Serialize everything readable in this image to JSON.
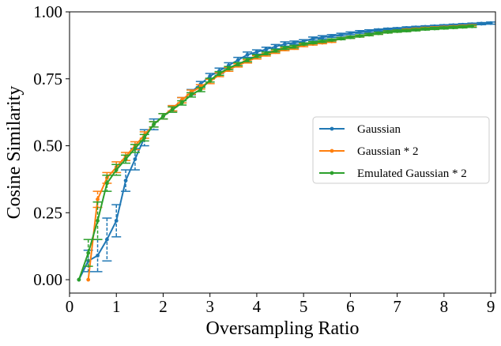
{
  "chart_data": {
    "type": "line",
    "title": "",
    "xlabel": "Oversampling Ratio",
    "ylabel": "Cosine Similarity",
    "xlim": [
      0,
      9.1
    ],
    "ylim": [
      -0.05,
      1.0
    ],
    "xticks": [
      0,
      1,
      2,
      3,
      4,
      5,
      6,
      7,
      8,
      9
    ],
    "yticks": [
      0.0,
      0.25,
      0.5,
      0.75,
      1.0
    ],
    "ytick_labels": [
      "0.00",
      "0.25",
      "0.50",
      "0.75",
      "1.00"
    ],
    "grid": false,
    "legend_position": "center-right",
    "series": [
      {
        "name": "Gaussian",
        "color": "#1f77b4",
        "x": [
          0.2,
          0.4,
          0.6,
          0.8,
          1.0,
          1.2,
          1.4,
          1.6,
          1.8,
          2.0,
          2.2,
          2.4,
          2.6,
          2.8,
          3.0,
          3.2,
          3.4,
          3.6,
          3.8,
          4.0,
          4.2,
          4.4,
          4.6,
          4.8,
          5.0,
          5.2,
          5.4,
          5.6,
          5.8,
          6.0,
          6.2,
          6.4,
          6.6,
          6.8,
          7.0,
          7.2,
          7.4,
          7.6,
          7.8,
          8.0,
          8.2,
          8.4,
          8.6,
          8.8,
          9.0
        ],
        "y": [
          0.0,
          0.07,
          0.09,
          0.15,
          0.22,
          0.37,
          0.45,
          0.53,
          0.58,
          0.61,
          0.64,
          0.67,
          0.7,
          0.73,
          0.76,
          0.78,
          0.8,
          0.82,
          0.84,
          0.85,
          0.86,
          0.87,
          0.88,
          0.885,
          0.89,
          0.9,
          0.905,
          0.91,
          0.915,
          0.92,
          0.925,
          0.928,
          0.932,
          0.935,
          0.937,
          0.94,
          0.942,
          0.944,
          0.946,
          0.948,
          0.95,
          0.952,
          0.954,
          0.956,
          0.958
        ],
        "err": [
          0.0,
          0.04,
          0.06,
          0.08,
          0.06,
          0.04,
          0.04,
          0.03,
          0.02,
          0.01,
          0.01,
          0.01,
          0.01,
          0.01,
          0.01,
          0.01,
          0.01,
          0.01,
          0.01,
          0.008,
          0.008,
          0.008,
          0.008,
          0.006,
          0.006,
          0.006,
          0.006,
          0.005,
          0.005,
          0.005,
          0.005,
          0.005,
          0.004,
          0.004,
          0.004,
          0.004,
          0.004,
          0.004,
          0.004,
          0.004,
          0.004,
          0.004,
          0.004,
          0.004,
          0.004
        ]
      },
      {
        "name": "Gaussian * 2",
        "color": "#ff7f0e",
        "x": [
          0.4,
          0.6,
          0.8,
          1.0,
          1.2,
          1.4,
          1.6,
          1.8,
          2.0,
          2.2,
          2.4,
          2.6,
          2.8,
          3.0,
          3.2,
          3.4,
          3.6,
          3.8,
          4.0,
          4.2,
          4.4,
          4.6,
          4.8,
          5.0,
          5.2,
          5.4,
          5.6,
          5.8,
          6.0,
          6.2,
          6.4,
          6.6,
          6.8,
          7.0,
          7.2,
          7.4,
          7.6,
          7.8,
          8.0,
          8.2,
          8.4,
          8.6
        ],
        "y": [
          0.0,
          0.3,
          0.38,
          0.42,
          0.46,
          0.5,
          0.54,
          0.58,
          0.61,
          0.64,
          0.67,
          0.7,
          0.72,
          0.74,
          0.765,
          0.785,
          0.8,
          0.815,
          0.83,
          0.84,
          0.85,
          0.86,
          0.865,
          0.875,
          0.88,
          0.885,
          0.89,
          0.9,
          0.905,
          0.91,
          0.915,
          0.92,
          0.925,
          0.928,
          0.932,
          0.935,
          0.938,
          0.94,
          0.942,
          0.944,
          0.946,
          0.948
        ],
        "err": [
          0.0,
          0.03,
          0.02,
          0.02,
          0.015,
          0.015,
          0.012,
          0.01,
          0.01,
          0.01,
          0.01,
          0.008,
          0.008,
          0.008,
          0.007,
          0.007,
          0.006,
          0.006,
          0.006,
          0.005,
          0.005,
          0.005,
          0.005,
          0.005,
          0.004,
          0.004,
          0.004,
          0.004,
          0.004,
          0.004,
          0.004,
          0.004,
          0.004,
          0.004,
          0.004,
          0.004,
          0.004,
          0.004,
          0.004,
          0.004,
          0.004,
          0.004
        ]
      },
      {
        "name": "Emulated Gaussian * 2",
        "color": "#2ca02c",
        "x": [
          0.2,
          0.4,
          0.6,
          0.8,
          1.0,
          1.2,
          1.4,
          1.6,
          1.8,
          2.0,
          2.2,
          2.4,
          2.6,
          2.8,
          3.0,
          3.2,
          3.4,
          3.6,
          3.8,
          4.0,
          4.2,
          4.4,
          4.6,
          4.8,
          5.0,
          5.2,
          5.4,
          5.6,
          5.8,
          6.0,
          6.2,
          6.4,
          6.6,
          6.8,
          7.0,
          7.2,
          7.4,
          7.6,
          7.8,
          8.0,
          8.2,
          8.4,
          8.6
        ],
        "y": [
          0.0,
          0.1,
          0.22,
          0.36,
          0.41,
          0.45,
          0.49,
          0.53,
          0.58,
          0.61,
          0.635,
          0.66,
          0.69,
          0.71,
          0.745,
          0.77,
          0.79,
          0.805,
          0.82,
          0.835,
          0.845,
          0.855,
          0.865,
          0.87,
          0.88,
          0.885,
          0.89,
          0.895,
          0.9,
          0.905,
          0.91,
          0.915,
          0.92,
          0.925,
          0.928,
          0.93,
          0.933,
          0.936,
          0.938,
          0.94,
          0.942,
          0.944,
          0.946
        ],
        "err": [
          0.0,
          0.05,
          0.07,
          0.03,
          0.02,
          0.015,
          0.015,
          0.012,
          0.01,
          0.01,
          0.01,
          0.008,
          0.008,
          0.008,
          0.007,
          0.007,
          0.006,
          0.006,
          0.006,
          0.005,
          0.005,
          0.005,
          0.005,
          0.005,
          0.004,
          0.004,
          0.004,
          0.004,
          0.004,
          0.004,
          0.004,
          0.004,
          0.004,
          0.004,
          0.004,
          0.004,
          0.004,
          0.004,
          0.004,
          0.004,
          0.004,
          0.004,
          0.004
        ]
      }
    ]
  }
}
